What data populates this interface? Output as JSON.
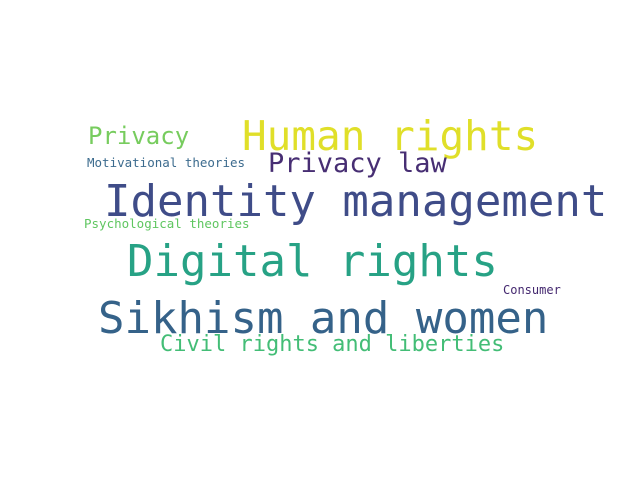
{
  "words": [
    {
      "text": "Human rights",
      "color": "#e0df29"
    },
    {
      "text": "Privacy",
      "color": "#77cc5e"
    },
    {
      "text": "Motivational theories",
      "color": "#3c6b8e"
    },
    {
      "text": "Privacy law",
      "color": "#472e73"
    },
    {
      "text": "Identity management",
      "color": "#3f4c88"
    },
    {
      "text": "Psychological theories",
      "color": "#5fc660"
    },
    {
      "text": "Digital rights",
      "color": "#27a285"
    },
    {
      "text": "Consumer",
      "color": "#44286f"
    },
    {
      "text": "Sikhism and women",
      "color": "#356289"
    },
    {
      "text": "Civil rights and liberties",
      "color": "#43bd76"
    }
  ]
}
